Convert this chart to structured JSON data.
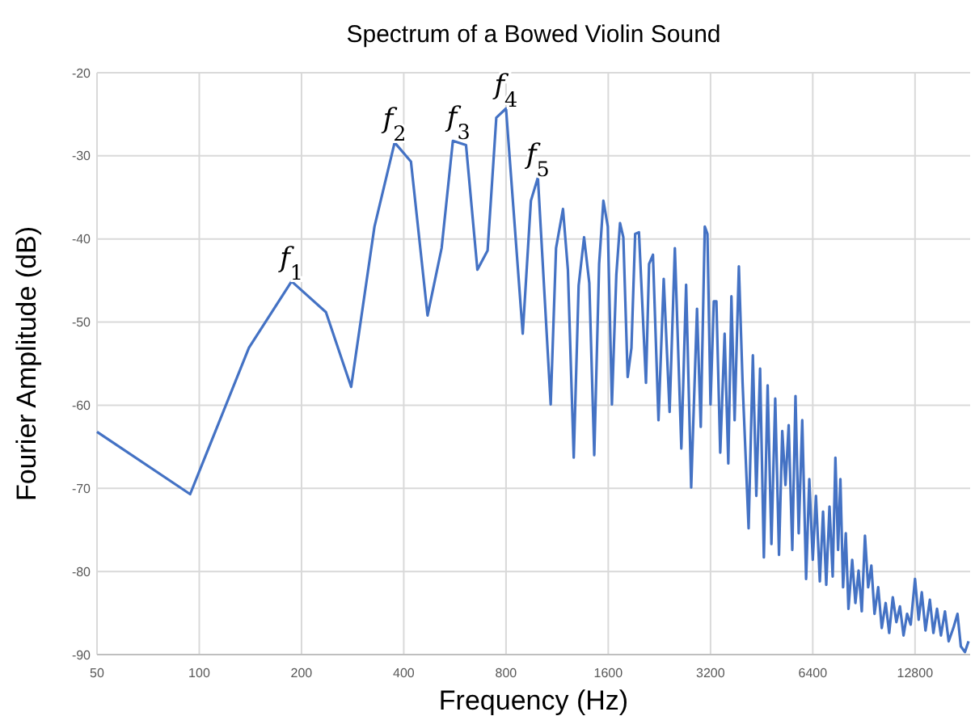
{
  "chart_data": {
    "type": "line",
    "title": "Spectrum of a Bowed Violin Sound",
    "xlabel": "Frequency (Hz)",
    "ylabel": "Fourier Amplitude (dB)",
    "log": "x",
    "grid": true,
    "xlim": [
      50,
      18600
    ],
    "xticks": [
      50,
      100,
      200,
      400,
      800,
      1600,
      3200,
      6400,
      12800
    ],
    "ylim": [
      -90,
      -20
    ],
    "yticks": [
      -90,
      -80,
      -70,
      -60,
      -50,
      -40,
      -30,
      -20
    ],
    "x": [
      50,
      94,
      140,
      187,
      236,
      280,
      328,
      376,
      420,
      470,
      517,
      558,
      610,
      659,
      706,
      749,
      800,
      896,
      947,
      993,
      1083,
      1123,
      1177,
      1217,
      1266,
      1309,
      1358,
      1407,
      1455,
      1504,
      1548,
      1595,
      1640,
      1690,
      1733,
      1772,
      1825,
      1872,
      1920,
      1970,
      2066,
      2110,
      2166,
      2249,
      2330,
      2425,
      2513,
      2626,
      2712,
      2807,
      2920,
      2995,
      3078,
      3134,
      3200,
      3272,
      3330,
      3418,
      3521,
      3610,
      3687,
      3768,
      3878,
      3977,
      4143,
      4264,
      4365,
      4478,
      4594,
      4713,
      4836,
      4962,
      5091,
      5204,
      5319,
      5436,
      5571,
      5693,
      5818,
      5959,
      6118,
      6251,
      6400,
      6540,
      6714,
      6862,
      7013,
      7168,
      7326,
      7461,
      7598,
      7718,
      7860,
      8005,
      8152,
      8361,
      8544,
      8731,
      8922,
      9117,
      9316,
      9520,
      9728,
      9973,
      10216,
      10490,
      10745,
      11010,
      11280,
      11557,
      11841,
      12132,
      12430,
      12800,
      13120,
      13400,
      13740,
      14155,
      14500,
      14860,
      15260,
      15680,
      16080,
      16600,
      17070,
      17460,
      17950,
      18400
    ],
    "series": [
      {
        "color": "#4472c4",
        "values": [
          -63.2,
          -70.7,
          -53.1,
          -45.1,
          -48.8,
          -57.8,
          -38.5,
          -28.4,
          -30.7,
          -49.2,
          -41.1,
          -28.2,
          -28.7,
          -43.7,
          -41.4,
          -25.4,
          -24.3,
          -51.4,
          -35.4,
          -32.6,
          -59.9,
          -41.1,
          -36.4,
          -43.7,
          -66.3,
          -45.6,
          -39.8,
          -45.3,
          -66,
          -43,
          -35.4,
          -38.5,
          -59.9,
          -44.3,
          -38.1,
          -39.8,
          -56.6,
          -53.1,
          -39.4,
          -39.2,
          -57.3,
          -43,
          -41.9,
          -61.8,
          -44.8,
          -60.8,
          -41.1,
          -65.2,
          -45.5,
          -69.9,
          -48.4,
          -62.6,
          -38.5,
          -39.4,
          -59.9,
          -47.5,
          -47.5,
          -65.7,
          -51.4,
          -67,
          -46.9,
          -61.8,
          -43.3,
          -57.3,
          -74.8,
          -54,
          -70.9,
          -55.6,
          -78.3,
          -57.6,
          -76.7,
          -59.2,
          -78,
          -63.1,
          -69.6,
          -62.4,
          -77.4,
          -58.9,
          -75.4,
          -61.8,
          -80.9,
          -68.9,
          -78.6,
          -70.9,
          -81.2,
          -72.8,
          -81.6,
          -72.2,
          -80.6,
          -66.3,
          -77.4,
          -68.9,
          -81.9,
          -75.4,
          -84.5,
          -78.6,
          -83.8,
          -79.9,
          -84.8,
          -75.7,
          -81.9,
          -79.3,
          -85.1,
          -81.9,
          -86.8,
          -83.8,
          -87.4,
          -83.1,
          -86.1,
          -84.2,
          -87.7,
          -85.1,
          -86.4,
          -80.9,
          -85.8,
          -82.5,
          -87.1,
          -83.4,
          -87.4,
          -84.5,
          -87.7,
          -84.8,
          -88.4,
          -86.8,
          -85.1,
          -89,
          -89.7,
          -88.4
        ]
      }
    ],
    "annotations": [
      {
        "text": "f$_{1}$",
        "x": 187,
        "y": -45.1
      },
      {
        "text": "f$_{2}$",
        "x": 376,
        "y": -28.4
      },
      {
        "text": "f$_{3}$",
        "x": 580,
        "y": -28.2
      },
      {
        "text": "f$_{4}$",
        "x": 800,
        "y": -24.3
      },
      {
        "text": "f$_{5}$",
        "x": 993,
        "y": -32.6
      }
    ]
  }
}
